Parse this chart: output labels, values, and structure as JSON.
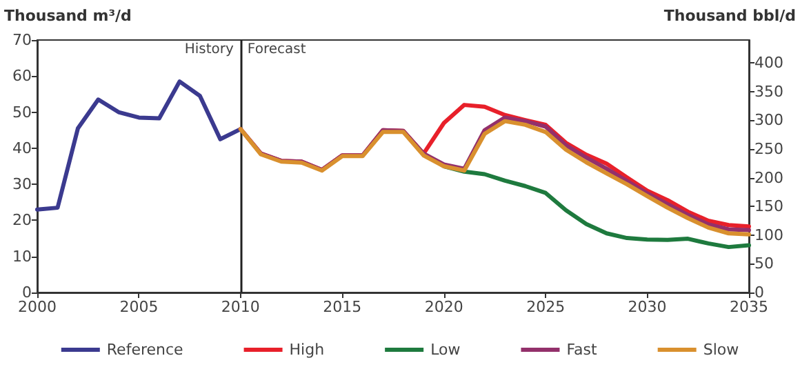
{
  "chart_data": {
    "type": "line",
    "ylabel": "Thousand m³/d",
    "y2label": "Thousand bbl/d",
    "xlim": [
      2000,
      2035
    ],
    "xticks": [
      2000,
      2005,
      2010,
      2015,
      2020,
      2025,
      2030,
      2035
    ],
    "ylim": [
      0,
      70
    ],
    "yticks": [
      0,
      10,
      20,
      30,
      40,
      50,
      60,
      70
    ],
    "y2lim": [
      0,
      440
    ],
    "y2ticks": [
      0,
      50,
      100,
      150,
      200,
      250,
      300,
      350,
      400
    ],
    "grid": false,
    "legend": "bottom",
    "marker": "none",
    "line_style": "solid",
    "ref_lines": [
      {
        "axis": "x",
        "value": 2010,
        "color": "#222222"
      }
    ],
    "annotations": [
      {
        "text": "History",
        "x": 2010,
        "y": 67
      },
      {
        "text": "Forecast",
        "x": 2010,
        "y": 67
      }
    ],
    "series": [
      {
        "name": "Reference",
        "color": "#3b3a8f",
        "x": [
          2000,
          2001,
          2002,
          2003,
          2004,
          2005,
          2006,
          2007,
          2008,
          2009,
          2010
        ],
        "values": [
          23,
          23.5,
          45.5,
          53.5,
          50,
          48.5,
          48.3,
          58.5,
          54.5,
          42.5,
          45.3
        ]
      },
      {
        "name": "High",
        "color": "#e8202a",
        "x": [
          2010,
          2011,
          2012,
          2013,
          2014,
          2015,
          2016,
          2017,
          2018,
          2019,
          2020,
          2021,
          2022,
          2023,
          2024,
          2025,
          2026,
          2027,
          2028,
          2029,
          2030,
          2031,
          2032,
          2033,
          2034,
          2035
        ],
        "values": [
          45.3,
          38.5,
          36.5,
          36.3,
          34,
          38,
          38,
          45,
          44.8,
          38.5,
          47,
          52,
          51.5,
          49.2,
          47.8,
          46.5,
          41.5,
          38.2,
          35.7,
          31.9,
          28.2,
          25.6,
          22.4,
          19.9,
          18.7,
          18.3
        ]
      },
      {
        "name": "Low",
        "color": "#1e7a3e",
        "x": [
          2019,
          2020,
          2021,
          2022,
          2023,
          2024,
          2025,
          2026,
          2027,
          2028,
          2029,
          2030,
          2031,
          2032,
          2033,
          2034,
          2035
        ],
        "values": [
          38.5,
          35,
          33.5,
          32.8,
          31,
          29.5,
          27.6,
          22.8,
          19,
          16.4,
          15.1,
          14.7,
          14.6,
          14.9,
          13.6,
          12.6,
          13.1
        ]
      },
      {
        "name": "Fast",
        "color": "#93306b",
        "x": [
          2010,
          2011,
          2012,
          2013,
          2014,
          2015,
          2016,
          2017,
          2018,
          2019,
          2020,
          2021,
          2022,
          2023,
          2024,
          2025,
          2026,
          2027,
          2028,
          2029,
          2030,
          2031,
          2032,
          2033,
          2034,
          2035
        ],
        "values": [
          45.3,
          38.5,
          36.5,
          36.3,
          34,
          38,
          38,
          45,
          44.8,
          38.5,
          35.5,
          34.3,
          45,
          48.5,
          47.5,
          46,
          40.8,
          37.4,
          34.3,
          30.9,
          27.5,
          24.5,
          21.5,
          18.9,
          17.5,
          17.3
        ]
      },
      {
        "name": "Slow",
        "color": "#d9902e",
        "x": [
          2010,
          2011,
          2012,
          2013,
          2014,
          2015,
          2016,
          2017,
          2018,
          2019,
          2020,
          2021,
          2022,
          2023,
          2024,
          2025,
          2026,
          2027,
          2028,
          2029,
          2030,
          2031,
          2032,
          2033,
          2034,
          2035
        ],
        "values": [
          45.3,
          38.3,
          36.3,
          36,
          33.8,
          37.8,
          37.8,
          44.5,
          44.5,
          38,
          35,
          33.8,
          44,
          47.5,
          46.5,
          44.5,
          39.6,
          36.1,
          33,
          30,
          26.7,
          23.5,
          20.6,
          18,
          16.4,
          16.1
        ]
      }
    ]
  }
}
